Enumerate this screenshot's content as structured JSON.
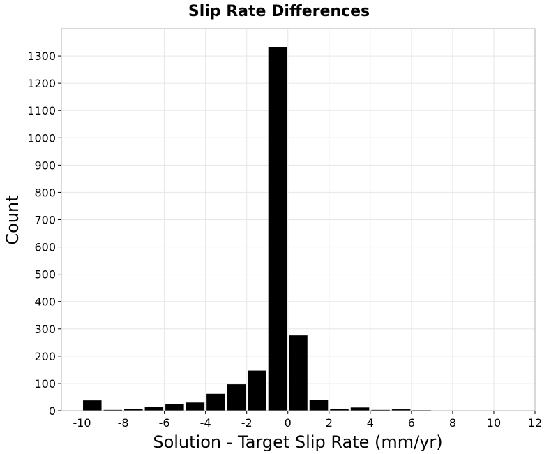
{
  "chart_data": {
    "type": "bar",
    "title": "Slip Rate Differences",
    "xlabel": "Solution - Target Slip Rate (mm/yr)",
    "ylabel": "Count",
    "xlim": [
      -11,
      12
    ],
    "ylim": [
      0,
      1400
    ],
    "bin_width": 1,
    "x_ticks": [
      -10,
      -8,
      -6,
      -4,
      -2,
      0,
      2,
      4,
      6,
      8,
      10,
      12
    ],
    "y_ticks": [
      0,
      100,
      200,
      300,
      400,
      500,
      600,
      700,
      800,
      900,
      1000,
      1100,
      1200,
      1300
    ],
    "grid": true,
    "bars": [
      {
        "x": -10,
        "value": 38
      },
      {
        "x": -9,
        "value": 3
      },
      {
        "x": -8,
        "value": 6
      },
      {
        "x": -7,
        "value": 13
      },
      {
        "x": -6,
        "value": 24
      },
      {
        "x": -5,
        "value": 30
      },
      {
        "x": -4,
        "value": 62
      },
      {
        "x": -3,
        "value": 97
      },
      {
        "x": -2,
        "value": 147
      },
      {
        "x": -1,
        "value": 1333
      },
      {
        "x": 0,
        "value": 276
      },
      {
        "x": 1,
        "value": 40
      },
      {
        "x": 2,
        "value": 7
      },
      {
        "x": 3,
        "value": 12
      },
      {
        "x": 4,
        "value": 3
      },
      {
        "x": 5,
        "value": 5
      },
      {
        "x": 6,
        "value": 2
      },
      {
        "x": 7,
        "value": 1
      },
      {
        "x": 8,
        "value": 1
      },
      {
        "x": 9,
        "value": 1
      },
      {
        "x": 10,
        "value": 1
      }
    ],
    "colors": {
      "bar": "#000000",
      "grid": "#e6e6e6",
      "frame": "#b0b0b0"
    }
  }
}
